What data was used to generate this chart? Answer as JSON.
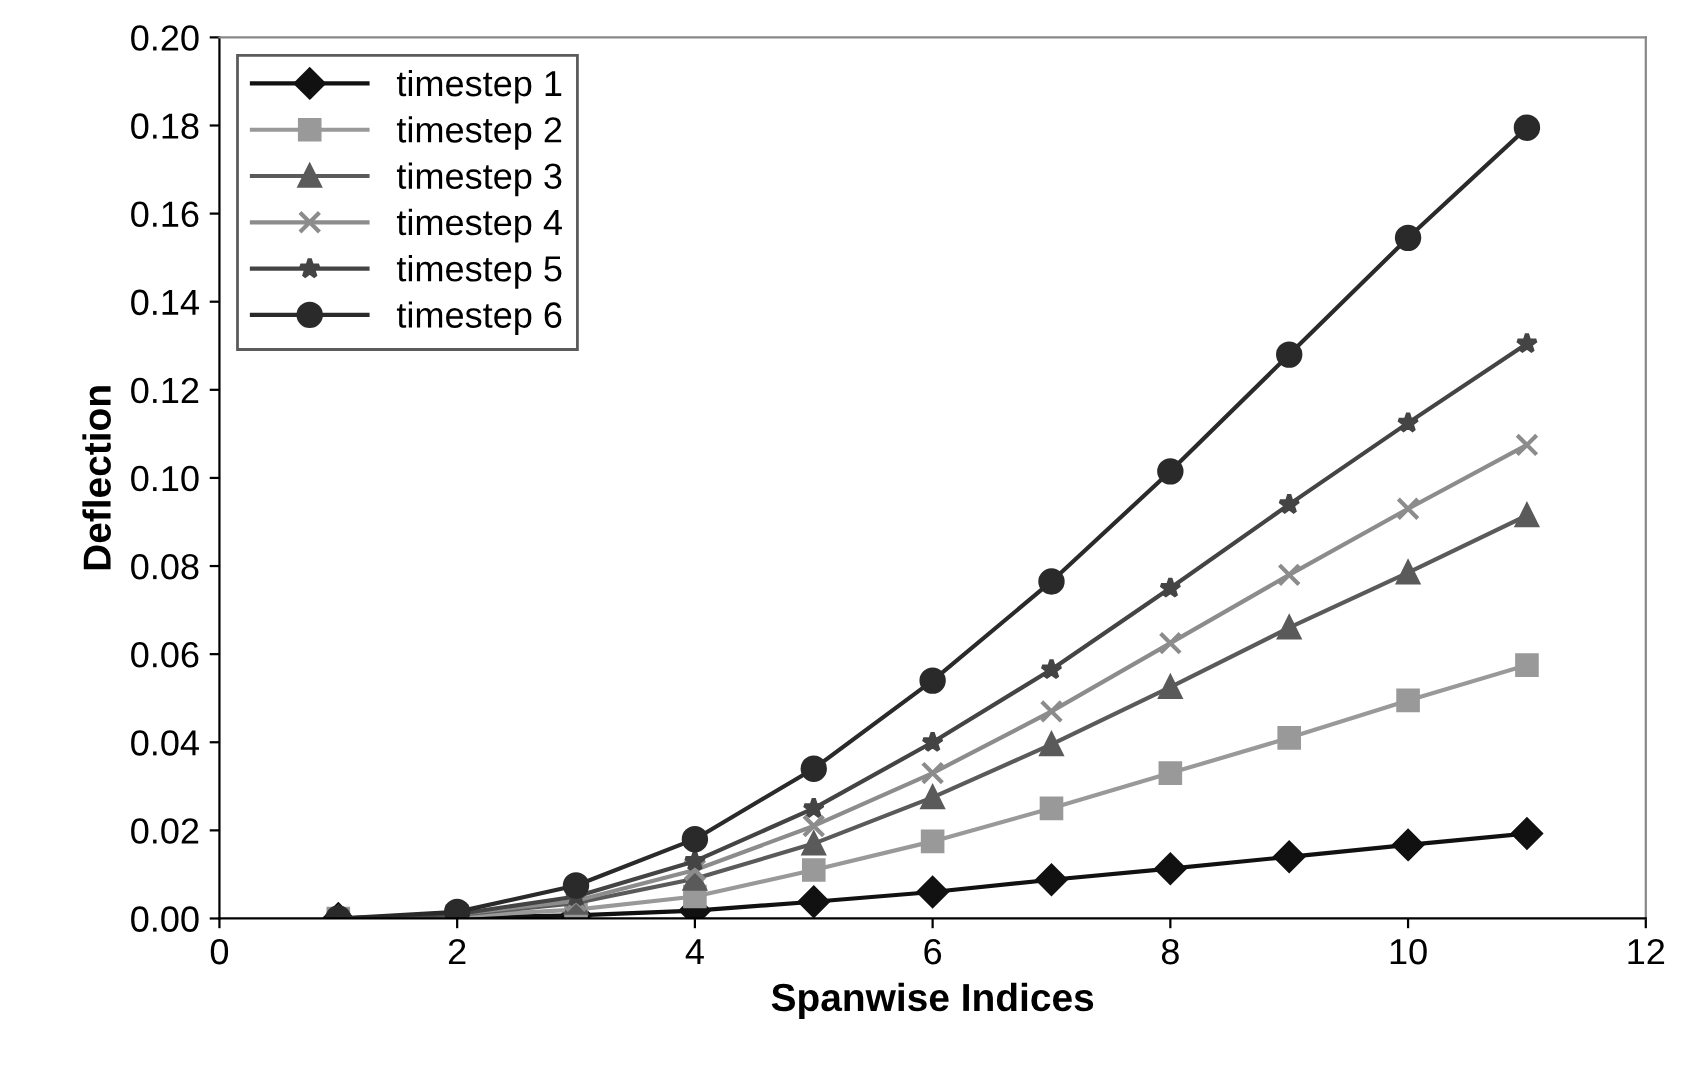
{
  "chart_data": {
    "type": "line",
    "xlabel": "Spanwise Indices",
    "ylabel": "Deflection",
    "x": [
      1,
      2,
      3,
      4,
      5,
      6,
      7,
      8,
      9,
      10,
      11
    ],
    "series": [
      {
        "name": "timestep 1",
        "color": "#111111",
        "marker": "diamond",
        "values": [
          0,
          0.0002,
          0.0007,
          0.0018,
          0.0038,
          0.006,
          0.0088,
          0.0113,
          0.014,
          0.0167,
          0.0193
        ]
      },
      {
        "name": "timestep 2",
        "color": "#999999",
        "marker": "square",
        "values": [
          0,
          0.0005,
          0.002,
          0.005,
          0.011,
          0.0175,
          0.025,
          0.033,
          0.041,
          0.0495,
          0.0575
        ]
      },
      {
        "name": "timestep 3",
        "color": "#5a5a5a",
        "marker": "triangle",
        "values": [
          0,
          0.0008,
          0.0035,
          0.009,
          0.017,
          0.0275,
          0.0395,
          0.0525,
          0.066,
          0.0785,
          0.0915
        ]
      },
      {
        "name": "timestep 4",
        "color": "#8c8c8c",
        "marker": "cross",
        "values": [
          0,
          0.001,
          0.004,
          0.011,
          0.021,
          0.033,
          0.047,
          0.0625,
          0.078,
          0.093,
          0.1075
        ]
      },
      {
        "name": "timestep 5",
        "color": "#444444",
        "marker": "star",
        "values": [
          0,
          0.001,
          0.005,
          0.013,
          0.025,
          0.04,
          0.0565,
          0.075,
          0.094,
          0.1125,
          0.1305
        ]
      },
      {
        "name": "timestep 6",
        "color": "#2a2a2a",
        "marker": "circle",
        "values": [
          0,
          0.0015,
          0.0075,
          0.018,
          0.034,
          0.054,
          0.0765,
          0.1015,
          0.128,
          0.1545,
          0.1795
        ]
      }
    ],
    "xlim": [
      0,
      12
    ],
    "xticks": [
      0,
      2,
      4,
      6,
      8,
      10,
      12
    ],
    "ylim": [
      0,
      0.2
    ],
    "yticks": [
      {
        "value": 0,
        "label": "0.00"
      },
      {
        "value": 0.02,
        "label": "0.02"
      },
      {
        "value": 0.04,
        "label": "0.04"
      },
      {
        "value": 0.06,
        "label": "0.06"
      },
      {
        "value": 0.08,
        "label": "0.08"
      },
      {
        "value": 0.1,
        "label": "0.10"
      },
      {
        "value": 0.12,
        "label": "0.12"
      },
      {
        "value": 0.14,
        "label": "0.14"
      },
      {
        "value": 0.16,
        "label": "0.16"
      },
      {
        "value": 0.18,
        "label": "0.18"
      },
      {
        "value": 0.2,
        "label": "0.20"
      }
    ],
    "grid": false,
    "legend": "top left",
    "line_style": "solid"
  }
}
